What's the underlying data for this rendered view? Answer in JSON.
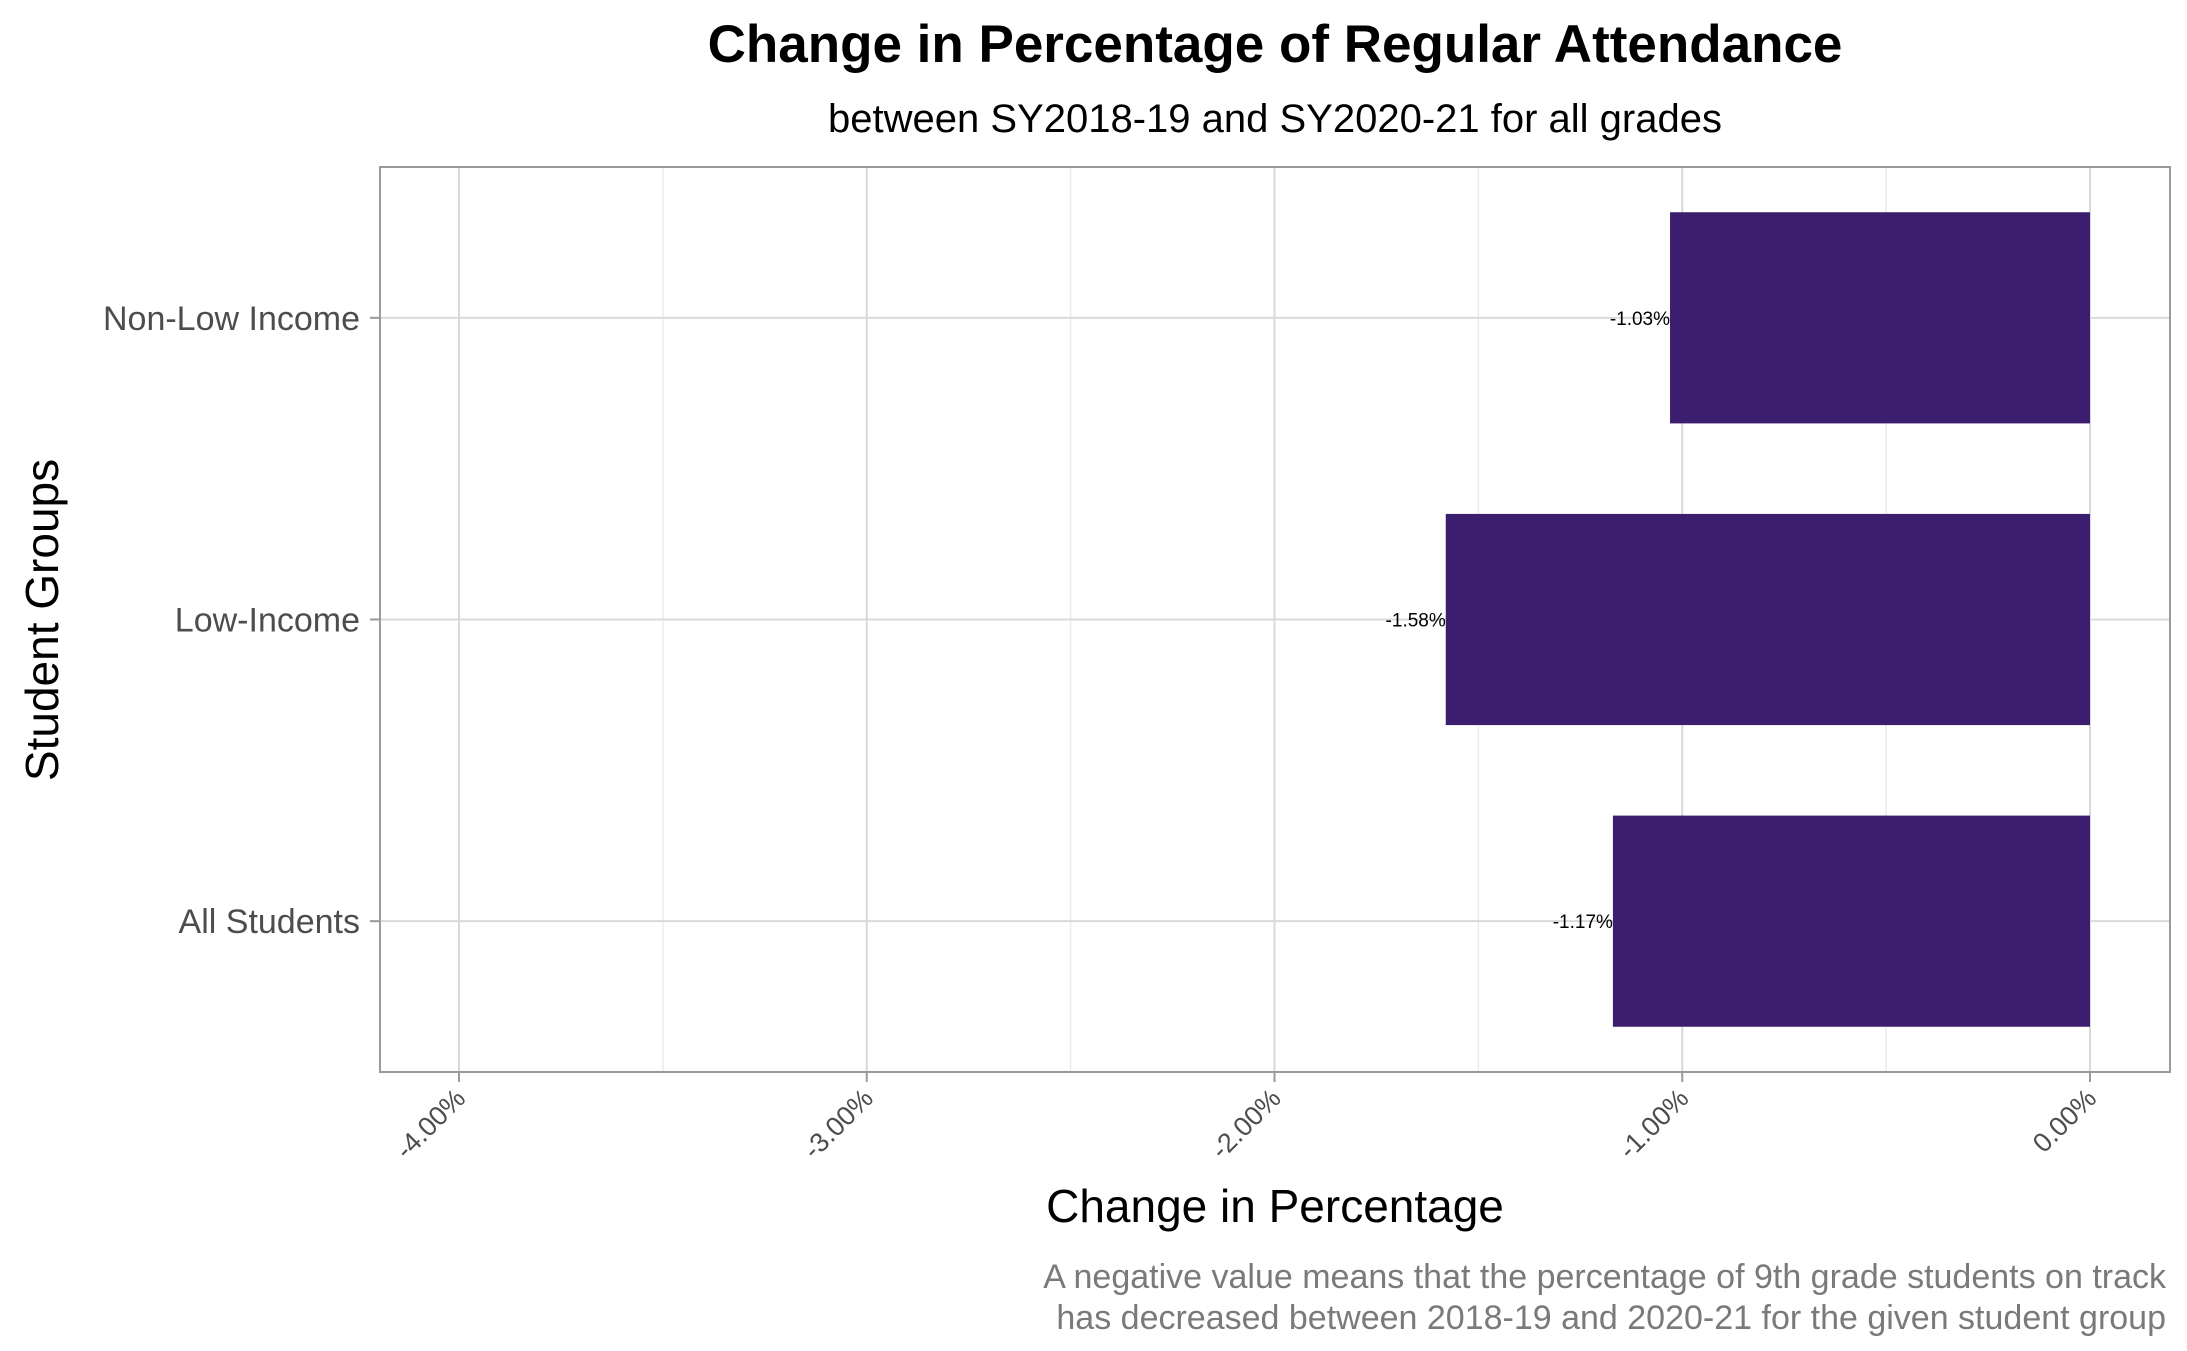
{
  "chart_data": {
    "type": "bar",
    "orientation": "horizontal",
    "title": "Change in Percentage of Regular Attendance",
    "subtitle": "between SY2018-19 and SY2020-21 for all grades",
    "xlabel": "Change in Percentage",
    "ylabel": "Student Groups",
    "categories": [
      "Non-Low Income",
      "Low-Income",
      "All Students"
    ],
    "values": [
      -1.03,
      -1.58,
      -1.17
    ],
    "value_labels": [
      "-1.03%",
      "-1.58%",
      "-1.17%"
    ],
    "xlim": [
      -4.0,
      0.0
    ],
    "x_ticks": [
      -4.0,
      -3.0,
      -2.0,
      -1.0,
      0.0
    ],
    "x_tick_labels": [
      "-4.00%",
      "-3.00%",
      "-2.00%",
      "-1.00%",
      "0.00%"
    ],
    "grid": true,
    "bar_color": "#3c1e6e",
    "caption_lines": [
      "A negative value means that the percentage of 9th grade students on track",
      "has decreased between 2018-19 and 2020-21 for the given student group"
    ]
  }
}
